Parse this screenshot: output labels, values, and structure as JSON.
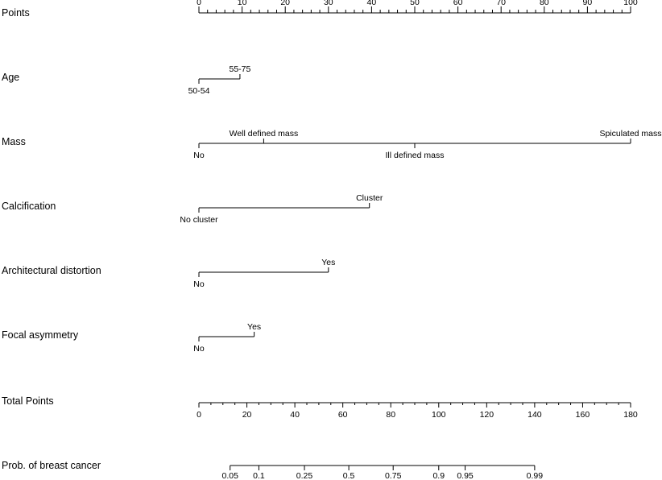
{
  "chart_data": {
    "type": "nomogram",
    "title": "",
    "points_scale": {
      "label": "Points",
      "range": [
        0,
        100
      ],
      "major_ticks": [
        0,
        10,
        20,
        30,
        40,
        50,
        60,
        70,
        80,
        90,
        100
      ],
      "minor_step": 2
    },
    "predictors": [
      {
        "label": "Age",
        "levels": [
          {
            "name": "50-54",
            "points": 0
          },
          {
            "name": "55-75",
            "points": 9.5
          }
        ]
      },
      {
        "label": "Mass",
        "levels": [
          {
            "name": "No",
            "points": 0
          },
          {
            "name": "Well defined mass",
            "points": 15
          },
          {
            "name": "Ill defined mass",
            "points": 50
          },
          {
            "name": "Spiculated mass",
            "points": 100
          }
        ]
      },
      {
        "label": "Calcification",
        "levels": [
          {
            "name": "No cluster",
            "points": 0
          },
          {
            "name": "Cluster",
            "points": 39.5
          }
        ]
      },
      {
        "label": "Architectural  distortion",
        "levels": [
          {
            "name": "No",
            "points": 0
          },
          {
            "name": "Yes",
            "points": 30
          }
        ]
      },
      {
        "label": "Focal  asymmetry",
        "levels": [
          {
            "name": "No",
            "points": 0
          },
          {
            "name": "Yes",
            "points": 12.8
          }
        ]
      }
    ],
    "total_points_scale": {
      "label": "Total Points",
      "range": [
        0,
        180
      ],
      "major_ticks": [
        0,
        20,
        40,
        60,
        80,
        100,
        120,
        140,
        160,
        180
      ],
      "minor_step": 5
    },
    "probability_scale": {
      "label": "Prob. of breast cancer",
      "ticks": [
        {
          "label": "0.05",
          "total_points": 13
        },
        {
          "label": "0.1",
          "total_points": 25
        },
        {
          "label": "0.25",
          "total_points": 44
        },
        {
          "label": "0.5",
          "total_points": 62.5
        },
        {
          "label": "0.75",
          "total_points": 81
        },
        {
          "label": "0.9",
          "total_points": 100
        },
        {
          "label": "0.95",
          "total_points": 111
        },
        {
          "label": "0.99",
          "total_points": 140
        }
      ]
    }
  }
}
